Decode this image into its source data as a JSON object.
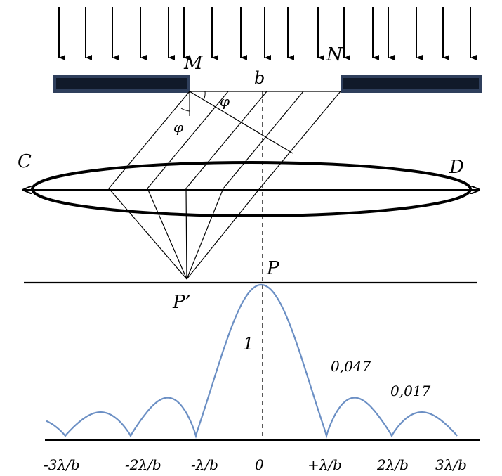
{
  "labels": {
    "M": "M",
    "N": "N",
    "b": "b",
    "phi_left": "φ",
    "phi_right": "φ",
    "C": "C",
    "D": "D",
    "P": "P",
    "P_prime": "P’",
    "central_peak": "1",
    "first_max": "0,047",
    "second_max": "0,017"
  },
  "axis_ticks": [
    "-3λ/b",
    "-2λ/b",
    "-λ/b",
    "0",
    "+λ/b",
    "2λ/b",
    "3λ/b"
  ],
  "colors": {
    "ink": "#000000",
    "slit_plate": "#2f3f5c",
    "intensity_curve": "#6b8fc4"
  },
  "incident_arrows": 17,
  "diffraction_pattern": {
    "relative_intensities": [
      1,
      0.047,
      0.017
    ]
  }
}
